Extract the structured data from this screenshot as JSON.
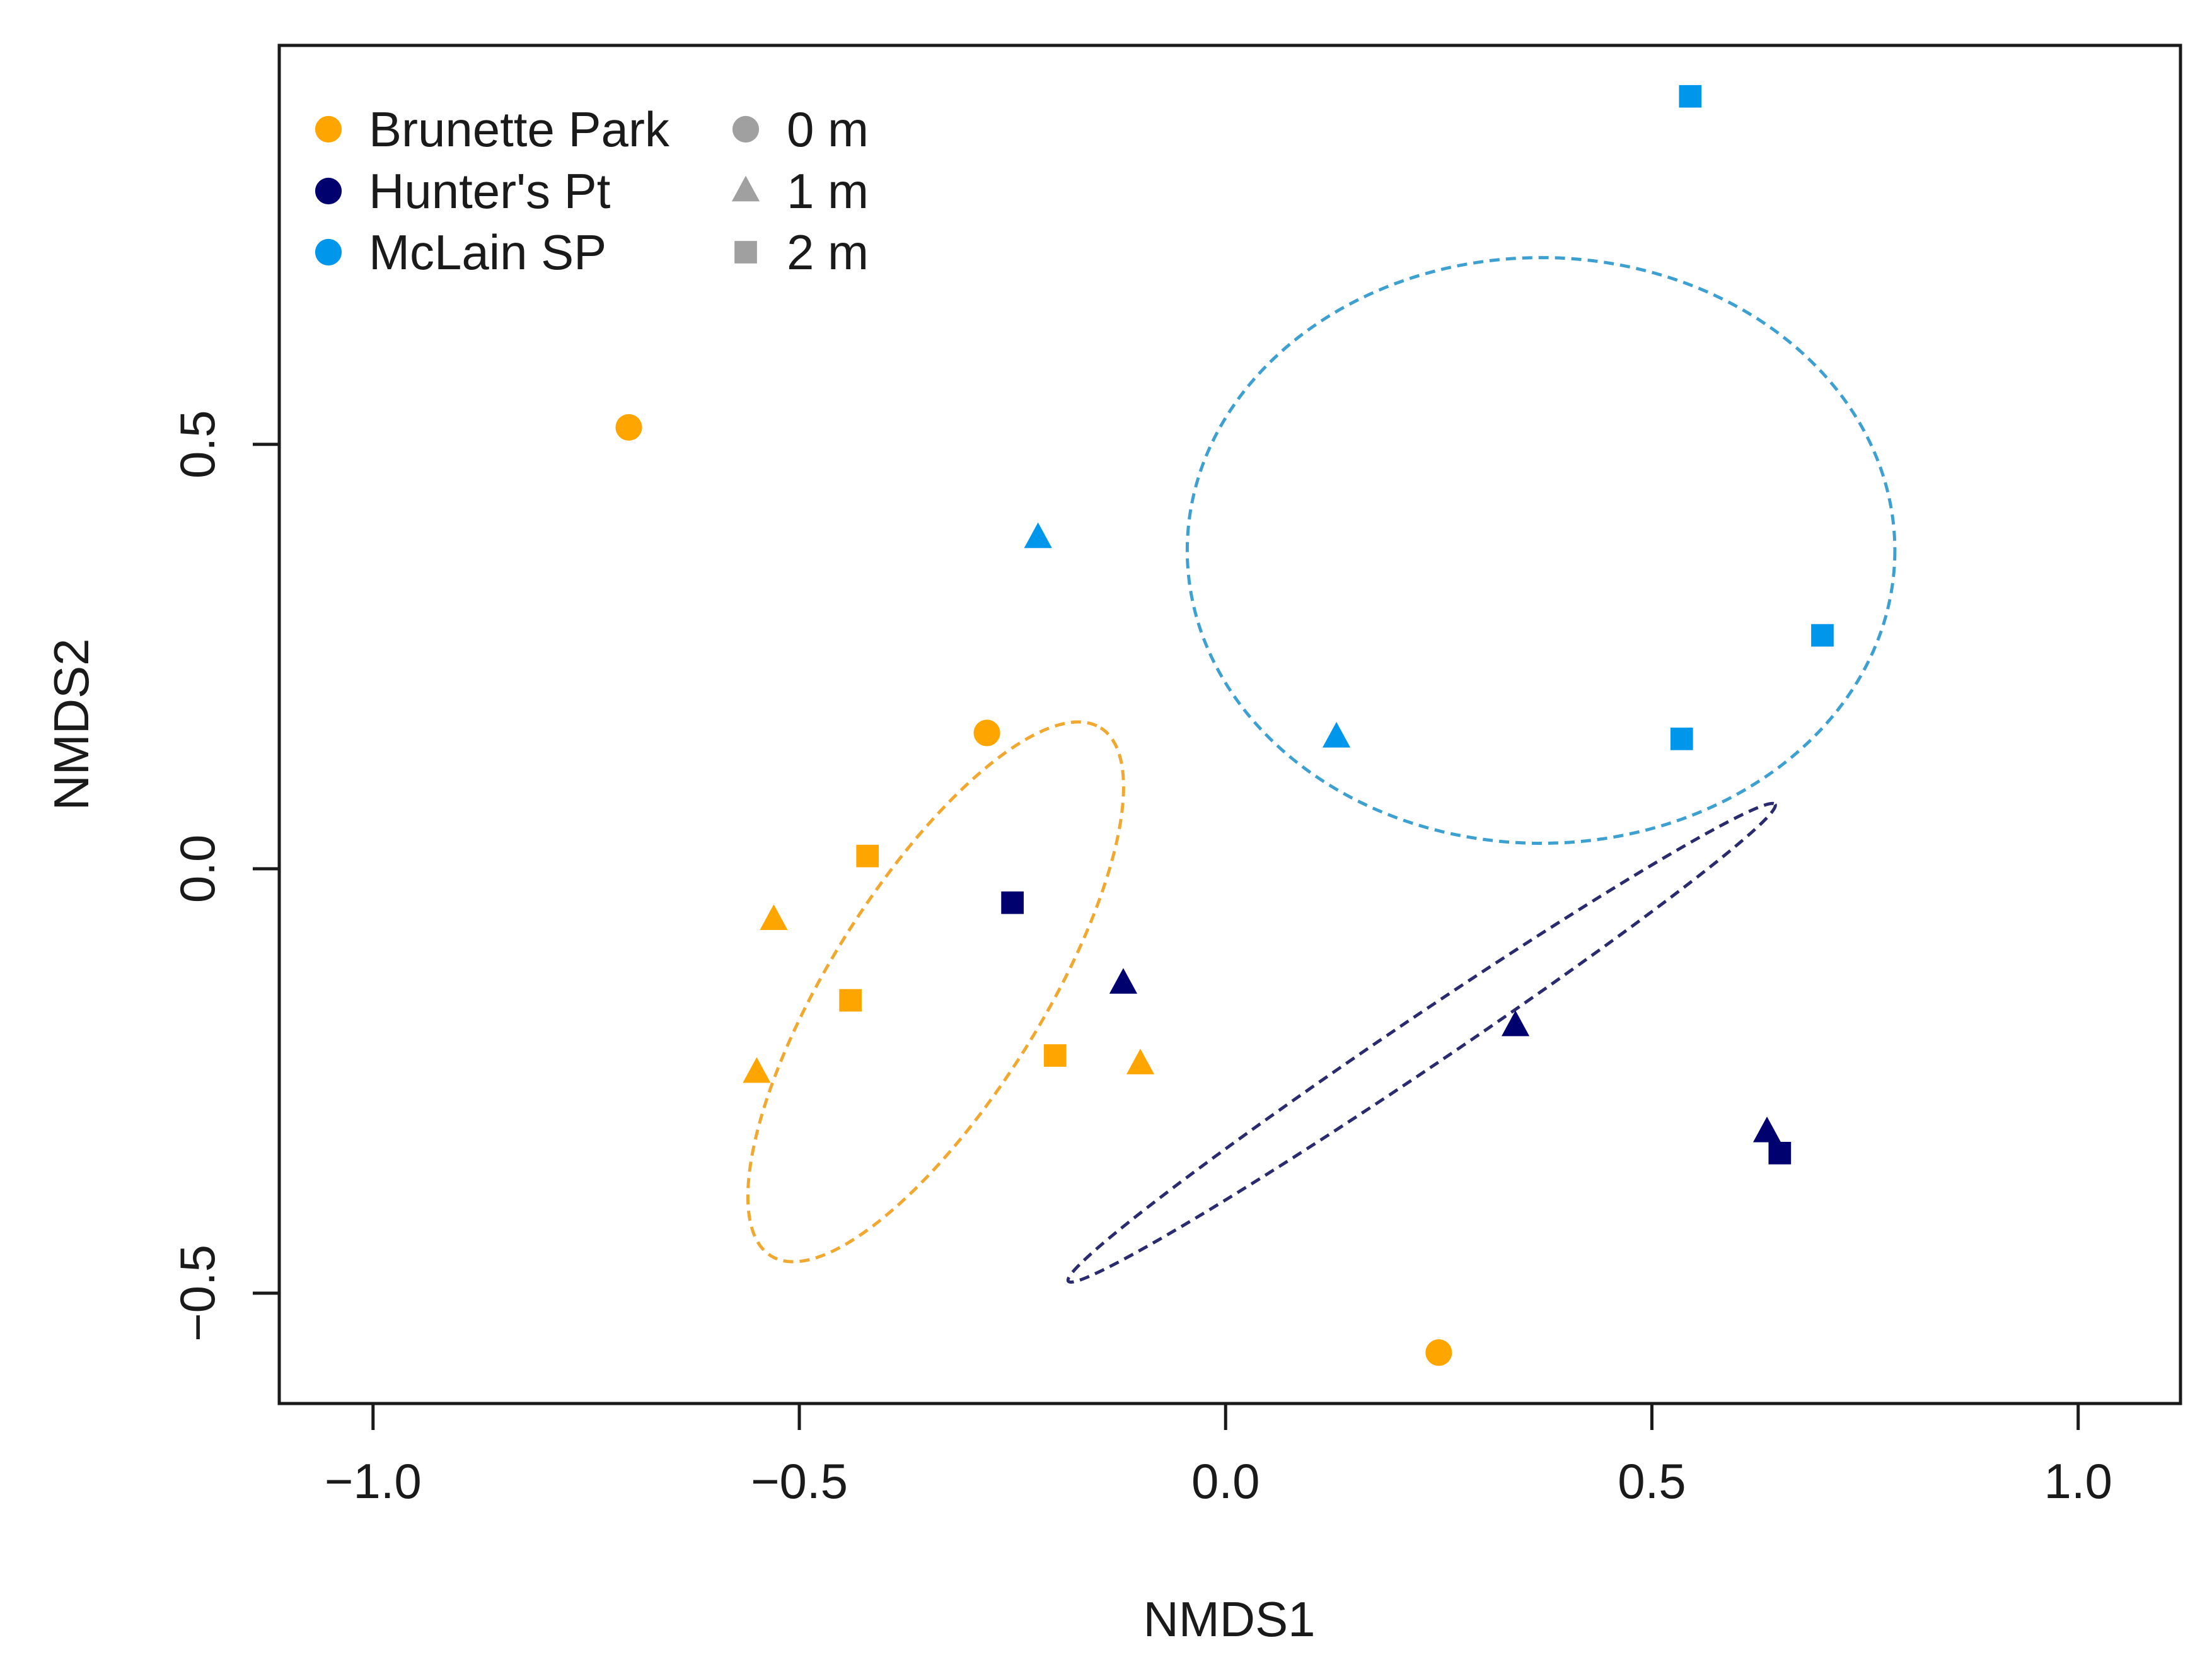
{
  "chart_data": {
    "type": "scatter",
    "title": "",
    "xlabel": "NMDS1",
    "ylabel": "NMDS2",
    "xlim": [
      -1.11,
      1.12
    ],
    "ylim": [
      -0.63,
      0.97
    ],
    "x_ticks": [
      {
        "value": -1.0,
        "label": "−1.0"
      },
      {
        "value": -0.5,
        "label": "−0.5"
      },
      {
        "value": 0.0,
        "label": "0.0"
      },
      {
        "value": 0.5,
        "label": "0.5"
      },
      {
        "value": 1.0,
        "label": "1.0"
      }
    ],
    "y_ticks": [
      {
        "value": -0.5,
        "label": "−0.5"
      },
      {
        "value": 0.0,
        "label": "0.0"
      },
      {
        "value": 0.5,
        "label": "0.5"
      }
    ],
    "grid": false,
    "legend_position": "top-left",
    "site_legend": [
      {
        "label": "Brunette Park",
        "color": "#FFA500"
      },
      {
        "label": "Hunter's Pt",
        "color": "#00006E"
      },
      {
        "label": "McLain SP",
        "color": "#0096EB"
      }
    ],
    "depth_legend": [
      {
        "label": "0 m",
        "shape": "circle",
        "color": "#A0A0A0"
      },
      {
        "label": "1 m",
        "shape": "triangle",
        "color": "#A0A0A0"
      },
      {
        "label": "2 m",
        "shape": "square",
        "color": "#A0A0A0"
      }
    ],
    "series": [
      {
        "name": "Brunette Park",
        "color": "#FFA500",
        "points": [
          {
            "x": -0.7,
            "y": 0.52,
            "depth": "0 m"
          },
          {
            "x": -0.28,
            "y": 0.16,
            "depth": "0 m"
          },
          {
            "x": 0.25,
            "y": -0.57,
            "depth": "0 m"
          },
          {
            "x": -0.53,
            "y": -0.06,
            "depth": "1 m"
          },
          {
            "x": -0.55,
            "y": -0.24,
            "depth": "1 m"
          },
          {
            "x": -0.1,
            "y": -0.23,
            "depth": "1 m"
          },
          {
            "x": -0.42,
            "y": 0.015,
            "depth": "2 m"
          },
          {
            "x": -0.44,
            "y": -0.155,
            "depth": "2 m"
          },
          {
            "x": -0.2,
            "y": -0.22,
            "depth": "2 m"
          }
        ]
      },
      {
        "name": "Hunter's Pt",
        "color": "#00006E",
        "points": [
          {
            "x": -0.12,
            "y": -0.135,
            "depth": "1 m"
          },
          {
            "x": 0.34,
            "y": -0.185,
            "depth": "1 m"
          },
          {
            "x": 0.635,
            "y": -0.31,
            "depth": "1 m"
          },
          {
            "x": -0.25,
            "y": -0.04,
            "depth": "2 m"
          },
          {
            "x": 0.65,
            "y": -0.335,
            "depth": "2 m"
          }
        ]
      },
      {
        "name": "McLain SP",
        "color": "#0096EB",
        "points": [
          {
            "x": -0.22,
            "y": 0.39,
            "depth": "1 m"
          },
          {
            "x": 0.13,
            "y": 0.155,
            "depth": "1 m"
          },
          {
            "x": 0.545,
            "y": 0.91,
            "depth": "2 m"
          },
          {
            "x": 0.7,
            "y": 0.275,
            "depth": "2 m"
          },
          {
            "x": 0.535,
            "y": 0.153,
            "depth": "2 m"
          }
        ]
      }
    ],
    "ellipses": [
      {
        "name": "Brunette Park",
        "color": "#F0A830",
        "cx": -0.34,
        "cy": -0.145,
        "rx": 0.365,
        "ry": 0.125,
        "angle_deg": -58
      },
      {
        "name": "Hunter's Pt",
        "color": "#2A2A6E",
        "cx": 0.23,
        "cy": -0.205,
        "rx": 0.5,
        "ry": 0.03,
        "angle_deg": -34
      },
      {
        "name": "McLain SP",
        "color": "#3DA0D0",
        "cx": 0.37,
        "cy": 0.375,
        "rx": 0.415,
        "ry": 0.345,
        "angle_deg": 0
      }
    ]
  }
}
